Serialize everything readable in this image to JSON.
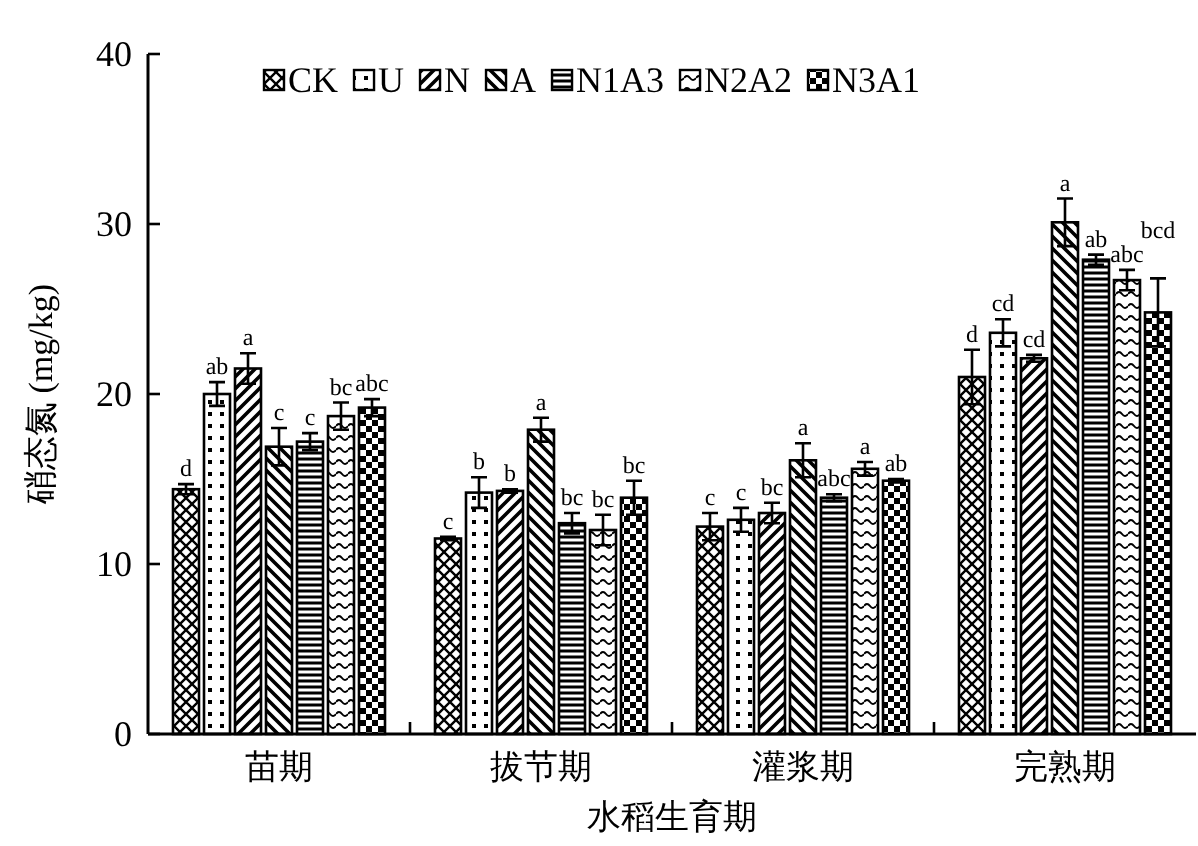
{
  "chart_data": {
    "type": "bar",
    "xlabel": "水稻生育期",
    "ylabel": "硝态氮 (mg/kg)",
    "categories": [
      "苗期",
      "拔节期",
      "灌浆期",
      "完熟期"
    ],
    "ylim": [
      0,
      40
    ],
    "yticks": [
      0,
      10,
      20,
      30,
      40
    ],
    "legend": "top",
    "grid": false,
    "series": [
      {
        "name": "CK",
        "color": "#000000",
        "values": [
          14.4,
          11.5,
          12.2,
          21.0
        ],
        "errors": [
          0.3,
          0.1,
          0.8,
          1.6
        ],
        "value_labels": [
          "d",
          "c",
          "c",
          "d"
        ]
      },
      {
        "name": "U",
        "color": "#000000",
        "values": [
          20.0,
          14.2,
          12.6,
          23.6
        ],
        "errors": [
          0.7,
          0.9,
          0.7,
          0.8
        ],
        "value_labels": [
          "ab",
          "b",
          "c",
          "cd"
        ]
      },
      {
        "name": "N",
        "color": "#000000",
        "values": [
          21.5,
          14.3,
          13.0,
          22.1
        ],
        "errors": [
          0.9,
          0.1,
          0.6,
          0.2
        ],
        "value_labels": [
          "a",
          "b",
          "bc",
          "cd"
        ]
      },
      {
        "name": "A",
        "color": "#000000",
        "values": [
          16.9,
          17.9,
          16.1,
          30.1
        ],
        "errors": [
          1.1,
          0.7,
          1.0,
          1.4
        ],
        "value_labels": [
          "c",
          "a",
          "a",
          "a"
        ]
      },
      {
        "name": "N1A3",
        "color": "#000000",
        "values": [
          17.2,
          12.4,
          13.9,
          27.9
        ],
        "errors": [
          0.5,
          0.6,
          0.2,
          0.3
        ],
        "value_labels": [
          "c",
          "bc",
          "abc",
          "ab"
        ]
      },
      {
        "name": "N2A2",
        "color": "#000000",
        "values": [
          18.7,
          12.0,
          15.6,
          26.7
        ],
        "errors": [
          0.8,
          0.9,
          0.4,
          0.6
        ],
        "value_labels": [
          "bc",
          "bc",
          "a",
          "abc"
        ]
      },
      {
        "name": "N3A1",
        "color": "#000000",
        "values": [
          19.2,
          13.9,
          14.9,
          24.8
        ],
        "errors": [
          0.5,
          1.0,
          0.1,
          2.0
        ],
        "value_labels": [
          "abc",
          "bc",
          "ab",
          "bcd"
        ]
      }
    ]
  }
}
